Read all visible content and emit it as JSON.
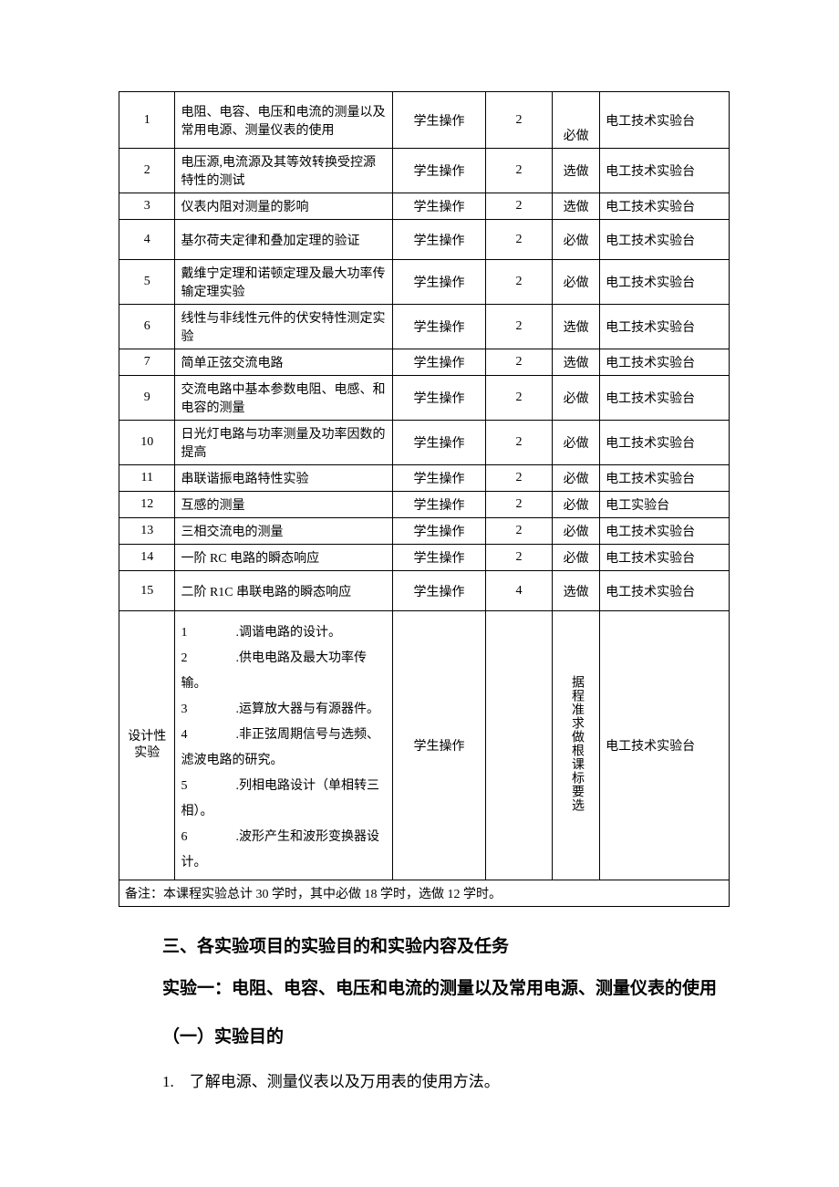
{
  "table": {
    "rows": [
      {
        "idx": "1",
        "name": "电阻、电容、电压和电流的测量以及常用电源、测量仪表的使用",
        "method": "学生操作",
        "hours": "2",
        "req": "必做",
        "equip": "电工技术实验台",
        "cls": "tall"
      },
      {
        "idx": "2",
        "name": "电压源,电流源及其等效转换受控源特性的测试",
        "method": "学生操作",
        "hours": "2",
        "req": "选做",
        "equip": "电工技术实验台",
        "cls": "med"
      },
      {
        "idx": "3",
        "name": "仪表内阻对测量的影响",
        "method": "学生操作",
        "hours": "2",
        "req": "选做",
        "equip": "电工技术实验台",
        "cls": "short"
      },
      {
        "idx": "4",
        "name": "基尔荷夫定律和叠加定理的验证",
        "method": "学生操作",
        "hours": "2",
        "req": "必做",
        "equip": "电工技术实验台",
        "cls": "med"
      },
      {
        "idx": "5",
        "name": "戴维宁定理和诺顿定理及最大功率传输定理实验",
        "method": "学生操作",
        "hours": "2",
        "req": "必做",
        "equip": "电工技术实验台",
        "cls": "med"
      },
      {
        "idx": "6",
        "name": "线性与非线性元件的伏安特性测定实验",
        "method": "学生操作",
        "hours": "2",
        "req": "选做",
        "equip": "电工技术实验台",
        "cls": "med"
      },
      {
        "idx": "7",
        "name": "简单正弦交流电路",
        "method": "学生操作",
        "hours": "2",
        "req": "选做",
        "equip": "电工技术实验台",
        "cls": "short"
      },
      {
        "idx": "9",
        "name": "交流电路中基本参数电阻、电感、和电容的测量",
        "method": "学生操作",
        "hours": "2",
        "req": "必做",
        "equip": "电工技术实验台",
        "cls": "med"
      },
      {
        "idx": "10",
        "name": "日光灯电路与功率测量及功率因数的提高",
        "method": "学生操作",
        "hours": "2",
        "req": "必做",
        "equip": "电工技术实验台",
        "cls": "med"
      },
      {
        "idx": "11",
        "name": "串联谐振电路特性实验",
        "method": "学生操作",
        "hours": "2",
        "req": "必做",
        "equip": "电工技术实验台",
        "cls": "short"
      },
      {
        "idx": "12",
        "name": "互感的测量",
        "method": "学生操作",
        "hours": "2",
        "req": "必做",
        "equip": "电工实验台",
        "cls": "short"
      },
      {
        "idx": "13",
        "name": "三相交流电的测量",
        "method": "学生操作",
        "hours": "2",
        "req": "必做",
        "equip": "电工技术实验台",
        "cls": "short"
      },
      {
        "idx": "14",
        "name": "一阶 RC 电路的瞬态响应",
        "method": "学生操作",
        "hours": "2",
        "req": "必做",
        "equip": "电工技术实验台",
        "cls": "short"
      },
      {
        "idx": "15",
        "name": "二阶 R1C 串联电路的瞬态响应",
        "method": "学生操作",
        "hours": "4",
        "req": "选做",
        "equip": "电工技术实验台",
        "cls": "med"
      }
    ],
    "design_row": {
      "label": "设计性实验",
      "items": [
        {
          "num": "1",
          "text": ".调谐电路的设计。"
        },
        {
          "num": "2",
          "text": ".供电电路及最大功率传输。"
        },
        {
          "num": "3",
          "text": ".运算放大器与有源器件。"
        },
        {
          "num": "4",
          "text": ".非正弦周期信号与选频、滤波电路的研究。"
        },
        {
          "num": "5",
          "text": ".列相电路设计（单相转三相）。"
        },
        {
          "num": "6",
          "text": ".波形产生和波形变换器设计。"
        }
      ],
      "method": "学生操作",
      "hours": "",
      "req": "据程准求做根课标要选",
      "equip": "电工技术实验台"
    },
    "footnote": "备注：本课程实验总计 30 学时，其中必做 18 学时，选做 12 学时。"
  },
  "section_heading": "三、各实验项目的实验目的和实验内容及任务",
  "exp1_title_lead": "",
  "exp1_title": "实验一：电阻、电容、电压和电流的测量以及常用电源、测量仪表的使用",
  "sub_heading": "（一）实验目的",
  "body_item1": "1.　了解电源、测量仪表以及万用表的使用方法。"
}
